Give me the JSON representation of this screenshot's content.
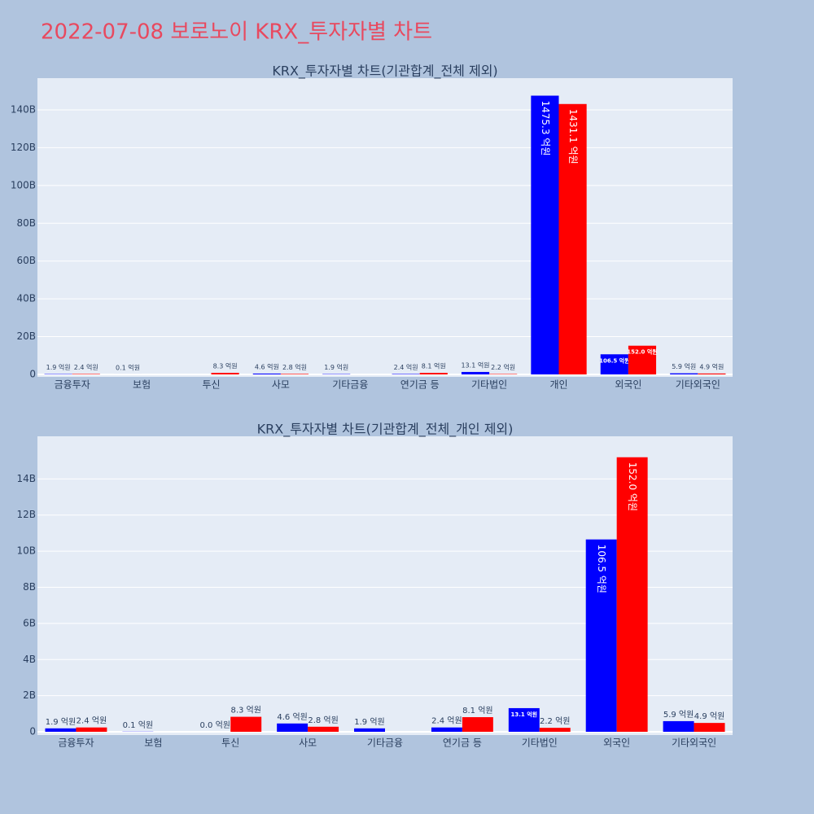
{
  "title": "2022-07-08 보로노이 KRX_투자자별 차트",
  "chart_data": [
    {
      "type": "bar",
      "title": "KRX_투자자별 차트(기관합계_전체 제외)",
      "categories": [
        "금융투자",
        "보험",
        "투신",
        "사모",
        "기타금융",
        "연기금 등",
        "기타법인",
        "개인",
        "외국인",
        "기타외국인"
      ],
      "series": [
        {
          "color": "#0000ff",
          "values": [
            190000000,
            10000000,
            null,
            460000000,
            190000000,
            240000000,
            1310000000,
            147530000000,
            10650000000,
            590000000
          ],
          "value_labels": [
            "1.9 억원",
            "0.1 억원",
            null,
            "4.6 억원",
            "1.9 억원",
            "2.4 억원",
            "13.1 억원",
            "1475.3 억원",
            "106.5 억원",
            "5.9 억원"
          ]
        },
        {
          "color": "#ff0000",
          "values": [
            240000000,
            null,
            830000000,
            280000000,
            null,
            810000000,
            220000000,
            143110000000,
            15200000000,
            490000000
          ],
          "value_labels": [
            "2.4 억원",
            null,
            "8.3 억원",
            "2.8 억원",
            null,
            "8.1 억원",
            "2.2 억원",
            "1431.1 억원",
            "152.0 억원",
            "4.9 억원"
          ]
        }
      ],
      "ylim": [
        -1300000000,
        156800000000
      ],
      "yticks": [
        {
          "value": 0,
          "label": "0"
        },
        {
          "value": 20000000000,
          "label": "20B"
        },
        {
          "value": 40000000000,
          "label": "40B"
        },
        {
          "value": 60000000000,
          "label": "60B"
        },
        {
          "value": 80000000000,
          "label": "80B"
        },
        {
          "value": 100000000000,
          "label": "100B"
        },
        {
          "value": 120000000000,
          "label": "120B"
        },
        {
          "value": 140000000000,
          "label": "140B"
        }
      ],
      "grid": true
    },
    {
      "type": "bar",
      "title": "KRX_투자자별 차트(기관합계_전체_개인 제외)",
      "categories": [
        "금융투자",
        "보험",
        "투신",
        "사모",
        "기타금융",
        "연기금 등",
        "기타법인",
        "외국인",
        "기타외국인"
      ],
      "series": [
        {
          "color": "#0000ff",
          "values": [
            190000000,
            10000000,
            0,
            460000000,
            190000000,
            240000000,
            1310000000,
            10650000000,
            590000000
          ],
          "value_labels": [
            "1.9 억원",
            "0.1 억원",
            "0.0 억원",
            "4.6 억원",
            "1.9 억원",
            "2.4 억원",
            "13.1 억원",
            "106.5 억원",
            "5.9 억원"
          ]
        },
        {
          "color": "#ff0000",
          "values": [
            240000000,
            null,
            830000000,
            280000000,
            null,
            810000000,
            220000000,
            15200000000,
            490000000
          ],
          "value_labels": [
            "2.4 억원",
            null,
            "8.3 억원",
            "2.8 억원",
            null,
            "8.1 억원",
            "2.2 억원",
            "152.0 억원",
            "4.9 억원"
          ]
        }
      ],
      "ylim": [
        -180000000,
        16360000000
      ],
      "yticks": [
        {
          "value": 0,
          "label": "0"
        },
        {
          "value": 2000000000,
          "label": "2B"
        },
        {
          "value": 4000000000,
          "label": "4B"
        },
        {
          "value": 6000000000,
          "label": "6B"
        },
        {
          "value": 8000000000,
          "label": "8B"
        },
        {
          "value": 10000000000,
          "label": "10B"
        },
        {
          "value": 12000000000,
          "label": "12B"
        },
        {
          "value": 14000000000,
          "label": "14B"
        }
      ],
      "grid": true
    }
  ]
}
